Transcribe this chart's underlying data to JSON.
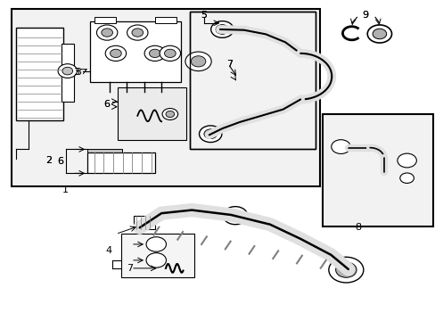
{
  "bg_color": "#ffffff",
  "line_color": "#000000",
  "light_gray": "#d8d8d8",
  "fig_width": 4.89,
  "fig_height": 3.6,
  "dpi": 100
}
